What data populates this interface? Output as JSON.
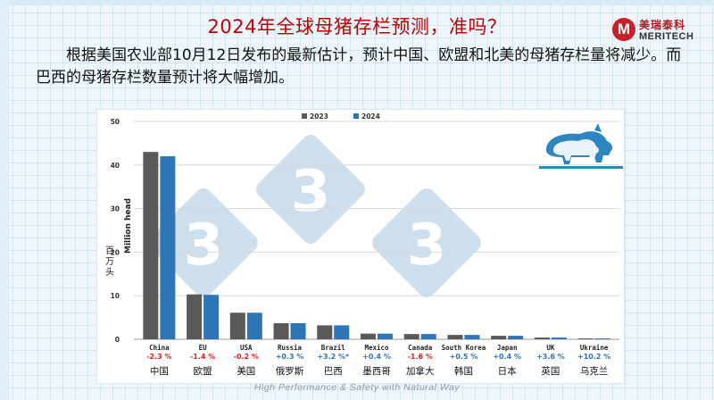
{
  "slide": {
    "title": "2024年全球母猪存栏预测，准吗？",
    "subtitle": "根据美国农业部10月12日发布的最新估计，预计中国、欧盟和北美的母猪存栏量将减少。而巴西的母猪存栏数量预计将大幅增加。",
    "footer": "High Performance & Safety with Natural Way"
  },
  "logo": {
    "mark": "M",
    "name_cn": "美瑞泰科",
    "name_en": "MERITECH",
    "color": "#c8202a"
  },
  "watermark": {
    "digits": [
      "3",
      "3",
      "3"
    ]
  },
  "chart_data": {
    "type": "bar",
    "title": "",
    "ylabel": "Million head",
    "ylabel_cn": "百万头",
    "ylim": [
      0,
      50
    ],
    "yticks": [
      0,
      10,
      20,
      30,
      40,
      50
    ],
    "grid": true,
    "legend_position": "top-center",
    "categories": [
      "China",
      "EU",
      "USA",
      "Russia",
      "Brazil",
      "Mexico",
      "Canada",
      "South Korea",
      "Japan",
      "UK",
      "Ukraine"
    ],
    "categories_cn": [
      "中国",
      "欧盟",
      "美国",
      "俄罗斯",
      "巴西",
      "墨西哥",
      "加拿大",
      "韩国",
      "日本",
      "英国",
      "乌克兰"
    ],
    "changes": [
      "-2.3 %",
      "-1.4 %",
      "-0.2 %",
      "+0.3 %",
      "+3.2 %*",
      "+0.4 %",
      "-1.6 %",
      "+0.5 %",
      "+0.4 %",
      "+3.6 %",
      "+10.2 %"
    ],
    "change_colors": [
      "#e02020",
      "#e02020",
      "#e02020",
      "#2e75b6",
      "#2e75b6",
      "#2e75b6",
      "#e02020",
      "#2e75b6",
      "#2e75b6",
      "#2e75b6",
      "#2e75b6"
    ],
    "series": [
      {
        "name": "2023",
        "color": "#595959",
        "values": [
          43.0,
          10.3,
          6.1,
          3.7,
          3.2,
          1.3,
          1.2,
          1.0,
          0.8,
          0.4,
          0.2
        ]
      },
      {
        "name": "2024",
        "color": "#2e75b6",
        "values": [
          42.0,
          10.2,
          6.1,
          3.7,
          3.2,
          1.3,
          1.2,
          1.0,
          0.8,
          0.4,
          0.2
        ]
      }
    ]
  }
}
